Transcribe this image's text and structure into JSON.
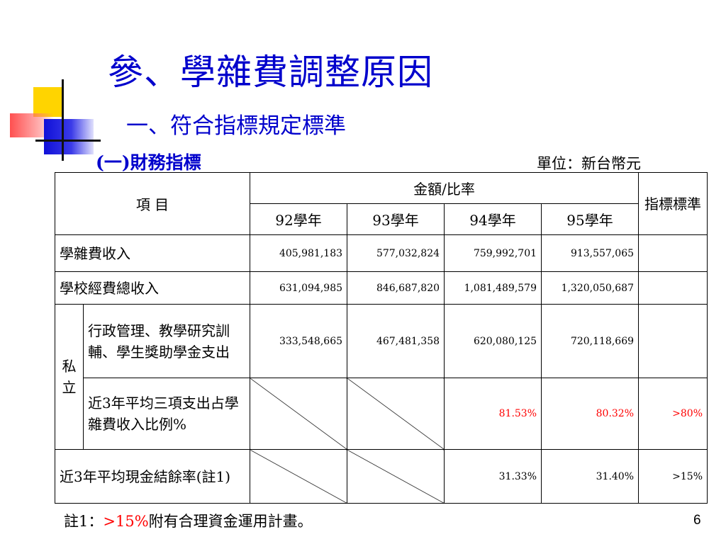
{
  "slide": {
    "title": "參、學雜費調整原因",
    "subtitle": "一、符合指標規定標準",
    "section": "(一)財務指標",
    "unit": "單位：新台幣元",
    "page_number": "6"
  },
  "table": {
    "header": {
      "item": "項  目",
      "amount_ratio": "金額/比率",
      "years": [
        "92學年",
        "93學年",
        "94學年",
        "95學年"
      ],
      "standard": "指標標準"
    },
    "rows": {
      "tuition_income": {
        "label": "學雜費收入",
        "values": [
          "405,981,183",
          "577,032,824",
          "759,992,701",
          "913,557,065"
        ],
        "standard": ""
      },
      "total_income": {
        "label": "學校經費總收入",
        "values": [
          "631,094,985",
          "846,687,820",
          "1,081,489,579",
          "1,320,050,687"
        ],
        "standard": ""
      },
      "private_group_label": "私立",
      "admin_expense": {
        "label": "行政管理、教學研究訓輔、學生獎助學金支出",
        "values": [
          "333,548,665",
          "467,481,358",
          "620,080,125",
          "720,118,669"
        ],
        "standard": ""
      },
      "expense_ratio": {
        "label": "近3年平均三項支出占學雜費收入比例%",
        "values": [
          "",
          "",
          "81.53%",
          "80.32%"
        ],
        "standard": ">80%"
      },
      "cash_surplus": {
        "label": "近3年平均現金結餘率(註1)",
        "values": [
          "",
          "",
          "31.33%",
          "31.40%"
        ],
        "standard": ">15%"
      }
    }
  },
  "note": {
    "prefix": "註1：",
    "highlight": ">15%",
    "text": "附有合理資金運用計畫。"
  },
  "colors": {
    "title": "#0000cc",
    "highlight": "#ff0000",
    "accent_yellow": "#ffd400",
    "accent_blue": "#1010d8",
    "accent_red": "#ff4646"
  }
}
